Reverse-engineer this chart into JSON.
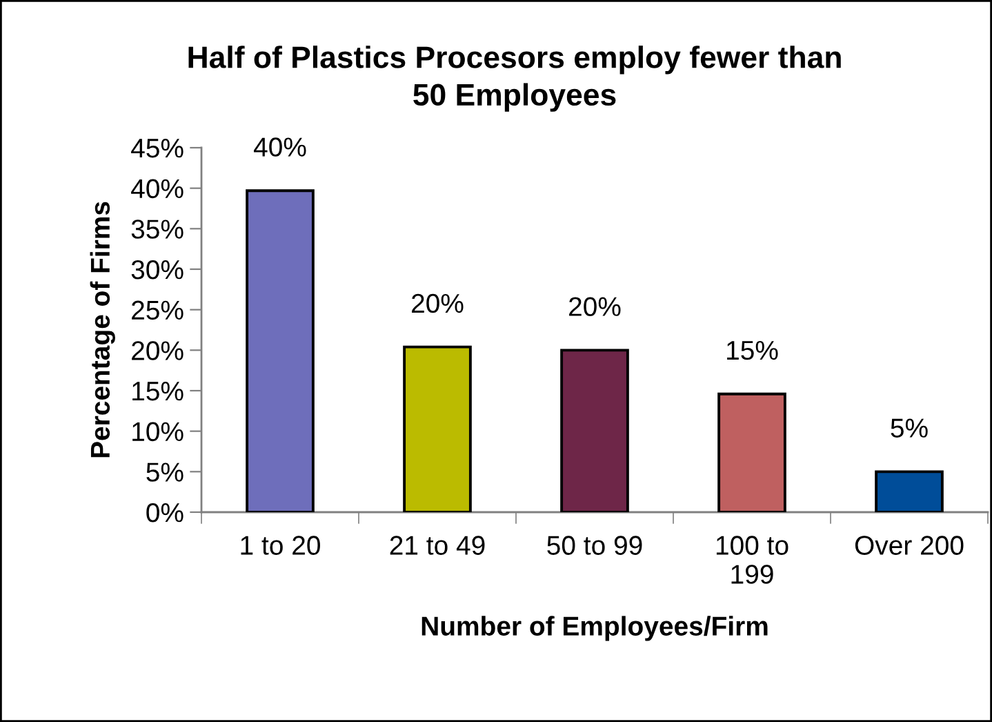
{
  "chart_data": {
    "type": "bar",
    "title": "Half of Plastics Procesors employ fewer than\n50 Employees",
    "xlabel": "Number of Employees/Firm",
    "ylabel": "Percentage of Firms",
    "categories": [
      "1 to 20",
      "21 to 49",
      "50 to 99",
      "100 to\n199",
      "Over 200"
    ],
    "values": [
      39.7,
      20.4,
      20.0,
      14.6,
      5.0
    ],
    "colors": [
      "#6e6ebb",
      "#bbbb00",
      "#6e2648",
      "#bf6060",
      "#004d99"
    ],
    "value_labels": [
      "40%",
      "20%",
      "20%",
      "15%",
      "5%"
    ],
    "ylim": [
      0,
      45
    ],
    "yticks": [
      {
        "value": 0,
        "label": "0%"
      },
      {
        "value": 5,
        "label": "5%"
      },
      {
        "value": 10,
        "label": "10%"
      },
      {
        "value": 15,
        "label": "15%"
      },
      {
        "value": 20,
        "label": "20%"
      },
      {
        "value": 25,
        "label": "25%"
      },
      {
        "value": 30,
        "label": "30%"
      },
      {
        "value": 35,
        "label": "35%"
      },
      {
        "value": 40,
        "label": "40%"
      },
      {
        "value": 45,
        "label": "45%"
      }
    ],
    "grid": false
  }
}
